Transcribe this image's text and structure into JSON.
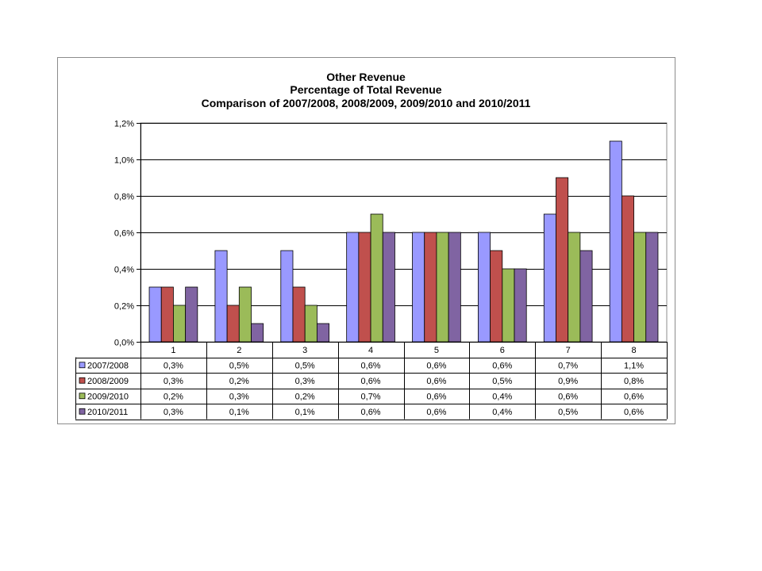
{
  "chart_data": {
    "type": "bar",
    "title_lines": [
      "Other Revenue",
      "Percentage of Total Revenue",
      "Comparison of 2007/2008, 2008/2009, 2009/2010 and 2010/2011"
    ],
    "categories": [
      "1",
      "2",
      "3",
      "4",
      "5",
      "6",
      "7",
      "8"
    ],
    "series": [
      {
        "name": "2007/2008",
        "color": "#9999ff",
        "values": [
          0.3,
          0.5,
          0.5,
          0.6,
          0.6,
          0.6,
          0.7,
          1.1
        ],
        "labels": [
          "0,3%",
          "0,5%",
          "0,5%",
          "0,6%",
          "0,6%",
          "0,6%",
          "0,7%",
          "1,1%"
        ]
      },
      {
        "name": "2008/2009",
        "color": "#c0504d",
        "values": [
          0.3,
          0.2,
          0.3,
          0.6,
          0.6,
          0.5,
          0.9,
          0.8
        ],
        "labels": [
          "0,3%",
          "0,2%",
          "0,3%",
          "0,6%",
          "0,6%",
          "0,5%",
          "0,9%",
          "0,8%"
        ]
      },
      {
        "name": "2009/2010",
        "color": "#9bbb59",
        "values": [
          0.2,
          0.3,
          0.2,
          0.7,
          0.6,
          0.4,
          0.6,
          0.6
        ],
        "labels": [
          "0,2%",
          "0,3%",
          "0,2%",
          "0,7%",
          "0,6%",
          "0,4%",
          "0,6%",
          "0,6%"
        ]
      },
      {
        "name": "2010/2011",
        "color": "#8064a2",
        "values": [
          0.3,
          0.1,
          0.1,
          0.6,
          0.6,
          0.4,
          0.5,
          0.6
        ],
        "labels": [
          "0,3%",
          "0,1%",
          "0,1%",
          "0,6%",
          "0,6%",
          "0,4%",
          "0,5%",
          "0,6%"
        ]
      }
    ],
    "ylim": [
      0,
      1.2
    ],
    "yticks": [
      0,
      0.2,
      0.4,
      0.6,
      0.8,
      1.0,
      1.2
    ],
    "ytick_labels": [
      "0,0%",
      "0,2%",
      "0,4%",
      "0,6%",
      "0,8%",
      "1,0%",
      "1,2%"
    ],
    "grid": true,
    "legend": "data-table"
  }
}
